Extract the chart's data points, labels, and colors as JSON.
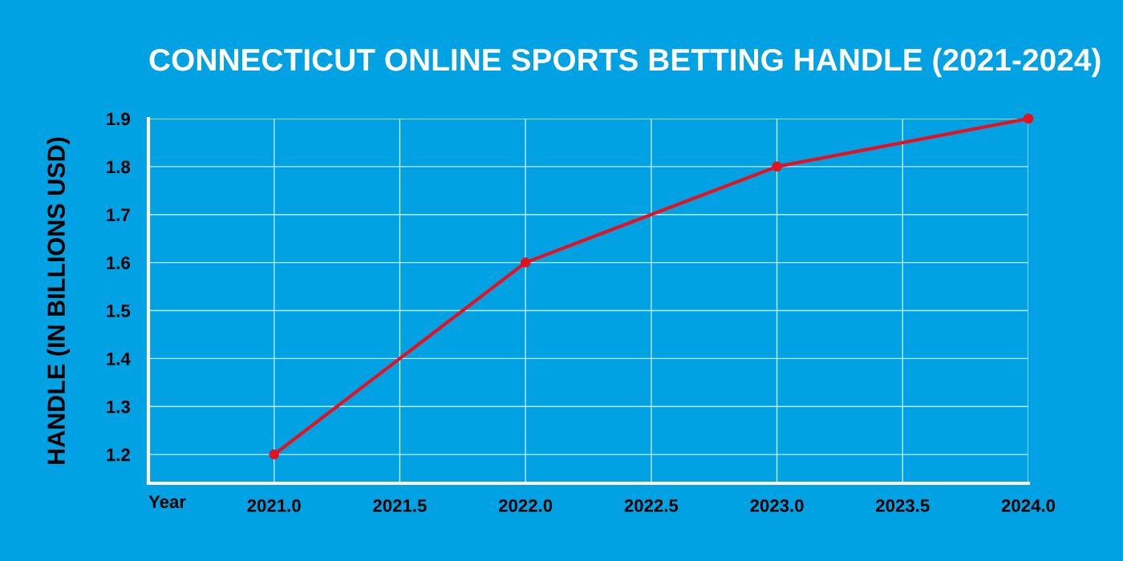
{
  "chart_data": {
    "type": "line",
    "title": "CONNECTICUT ONLINE SPORTS BETTING HANDLE (2021-2024)",
    "xlabel": "Year",
    "ylabel": "HANDLE (IN BILLIONS USD)",
    "x": [
      2021,
      2022,
      2023,
      2024
    ],
    "series": [
      {
        "color": "#e8101e",
        "values": [
          1.2,
          1.6,
          1.8,
          1.9
        ]
      }
    ],
    "xlim": [
      2020.5,
      2024.0
    ],
    "xticks": [
      {
        "value": 2021.0,
        "label": "2021.0"
      },
      2021.5,
      {
        "value": 2022.0,
        "label": "2022.0"
      },
      2022.5,
      {
        "value": 2023.0,
        "label": "2023.0"
      },
      2023.5,
      {
        "value": 2024.0,
        "label": "2024.0"
      }
    ],
    "ylim": [
      1.14,
      1.9
    ],
    "yticks": [
      1.2,
      1.3,
      1.4,
      1.5,
      1.6,
      1.7,
      1.8,
      1.9
    ],
    "grid": true,
    "legend": false,
    "marker": "circle",
    "line_style": "solid"
  }
}
